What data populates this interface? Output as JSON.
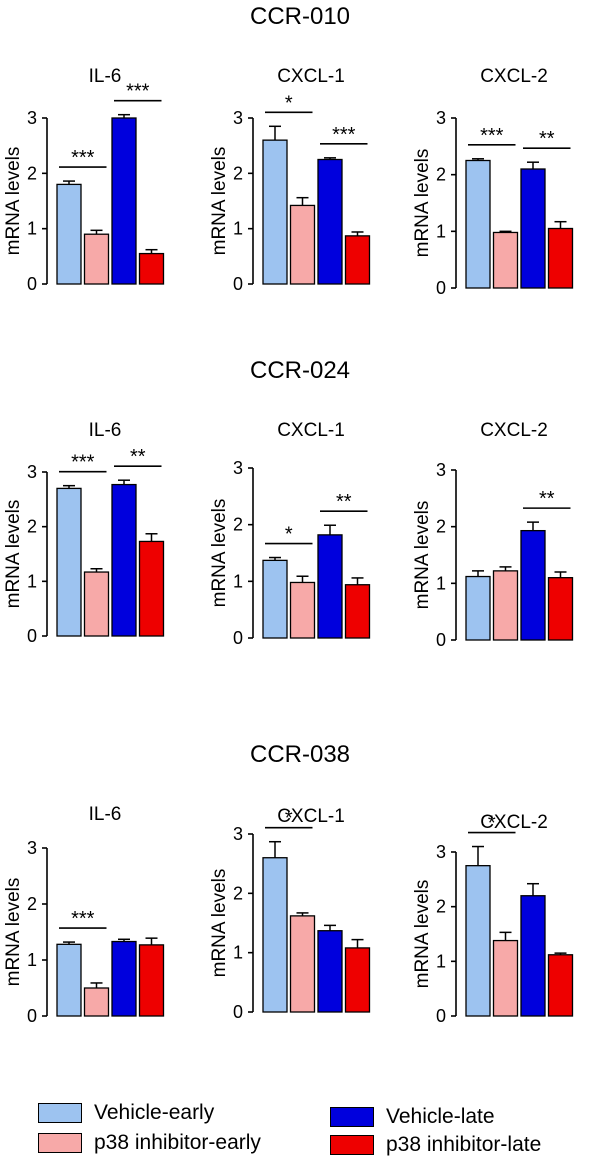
{
  "colors": {
    "vehicle_early": "#9dc3f0",
    "p38_early": "#f7a9a8",
    "vehicle_late": "#0000dd",
    "p38_late": "#ee0000"
  },
  "legend": [
    {
      "label": "Vehicle-early",
      "color_key": "vehicle_early"
    },
    {
      "label": "p38 inhibitor-early",
      "color_key": "p38_early"
    },
    {
      "label": "Vehicle-late",
      "color_key": "vehicle_late"
    },
    {
      "label": "p38 inhibitor-late",
      "color_key": "p38_late"
    }
  ],
  "chart_data": [
    {
      "group": "CCR-010",
      "panels": [
        {
          "type": "bar",
          "title": "IL-6",
          "ylabel": "mRNA levels",
          "ylim": [
            0,
            3
          ],
          "yticks": [
            "0",
            "1",
            "2",
            "3"
          ],
          "values": [
            1.8,
            0.9,
            3.0,
            0.55
          ],
          "errors": [
            0.06,
            0.07,
            0.06,
            0.07
          ],
          "sig": [
            {
              "label": "***",
              "bars": [
                0,
                1
              ]
            },
            {
              "label": "***",
              "bars": [
                2,
                3
              ]
            }
          ]
        },
        {
          "type": "bar",
          "title": "CXCL-1",
          "ylabel": "mRNA levels",
          "ylim": [
            0,
            3
          ],
          "yticks": [
            "0",
            "1",
            "2",
            "3"
          ],
          "values": [
            2.6,
            1.42,
            2.25,
            0.87
          ],
          "errors": [
            0.25,
            0.14,
            0.03,
            0.07
          ],
          "sig": [
            {
              "label": "*",
              "bars": [
                0,
                1
              ]
            },
            {
              "label": "***",
              "bars": [
                2,
                3
              ]
            }
          ]
        },
        {
          "type": "bar",
          "title": "CXCL-2",
          "ylabel": "mRNA levels",
          "ylim": [
            0,
            3
          ],
          "yticks": [
            "0",
            "1",
            "2",
            "3"
          ],
          "values": [
            2.25,
            0.98,
            2.1,
            1.05
          ],
          "errors": [
            0.03,
            0.02,
            0.12,
            0.12
          ],
          "sig": [
            {
              "label": "***",
              "bars": [
                0,
                1
              ]
            },
            {
              "label": "**",
              "bars": [
                2,
                3
              ]
            }
          ]
        }
      ]
    },
    {
      "group": "CCR-024",
      "panels": [
        {
          "type": "bar",
          "title": "IL-6",
          "ylabel": "mRNA levels",
          "ylim": [
            0,
            3
          ],
          "yticks": [
            "0",
            "1",
            "2",
            "3"
          ],
          "values": [
            2.7,
            1.17,
            2.77,
            1.73
          ],
          "errors": [
            0.05,
            0.06,
            0.08,
            0.14
          ],
          "sig": [
            {
              "label": "***",
              "bars": [
                0,
                1
              ]
            },
            {
              "label": "**",
              "bars": [
                2,
                3
              ]
            }
          ]
        },
        {
          "type": "bar",
          "title": "CXCL-1",
          "ylabel": "mRNA levels",
          "ylim": [
            0,
            3
          ],
          "yticks": [
            "0",
            "1",
            "2",
            "3"
          ],
          "values": [
            1.37,
            0.98,
            1.82,
            0.94
          ],
          "errors": [
            0.05,
            0.11,
            0.17,
            0.12
          ],
          "sig": [
            {
              "label": "*",
              "bars": [
                0,
                1
              ]
            },
            {
              "label": "**",
              "bars": [
                2,
                3
              ]
            }
          ]
        },
        {
          "type": "bar",
          "title": "CXCL-2",
          "ylabel": "mRNA levels",
          "ylim": [
            0,
            3
          ],
          "yticks": [
            "0",
            "1",
            "2",
            "3"
          ],
          "values": [
            1.12,
            1.22,
            1.93,
            1.1
          ],
          "errors": [
            0.1,
            0.07,
            0.15,
            0.1
          ],
          "sig": [
            {
              "label": "**",
              "bars": [
                2,
                3
              ]
            }
          ]
        }
      ]
    },
    {
      "group": "CCR-038",
      "panels": [
        {
          "type": "bar",
          "title": "IL-6",
          "ylabel": "mRNA levels",
          "ylim": [
            0,
            3
          ],
          "yticks": [
            "0",
            "1",
            "2",
            "3"
          ],
          "values": [
            1.28,
            0.5,
            1.33,
            1.27
          ],
          "errors": [
            0.04,
            0.09,
            0.04,
            0.12
          ],
          "sig": [
            {
              "label": "***",
              "bars": [
                0,
                1
              ]
            }
          ]
        },
        {
          "type": "bar",
          "title": "CXCL-1",
          "ylabel": "mRNA levels",
          "ylim": [
            0,
            3
          ],
          "yticks": [
            "0",
            "1",
            "2",
            "3"
          ],
          "values": [
            2.6,
            1.62,
            1.37,
            1.08
          ],
          "errors": [
            0.27,
            0.05,
            0.09,
            0.14
          ],
          "sig": [
            {
              "label": "*",
              "bars": [
                0,
                1
              ]
            }
          ]
        },
        {
          "type": "bar",
          "title": "CXCL-2",
          "ylabel": "mRNA levels",
          "ylim": [
            0,
            3
          ],
          "yticks": [
            "0",
            "1",
            "2",
            "3"
          ],
          "values": [
            2.75,
            1.38,
            2.2,
            1.12
          ],
          "errors": [
            0.35,
            0.15,
            0.22,
            0.03
          ],
          "sig": [
            {
              "label": "*",
              "bars": [
                0,
                1
              ]
            }
          ]
        }
      ]
    }
  ]
}
